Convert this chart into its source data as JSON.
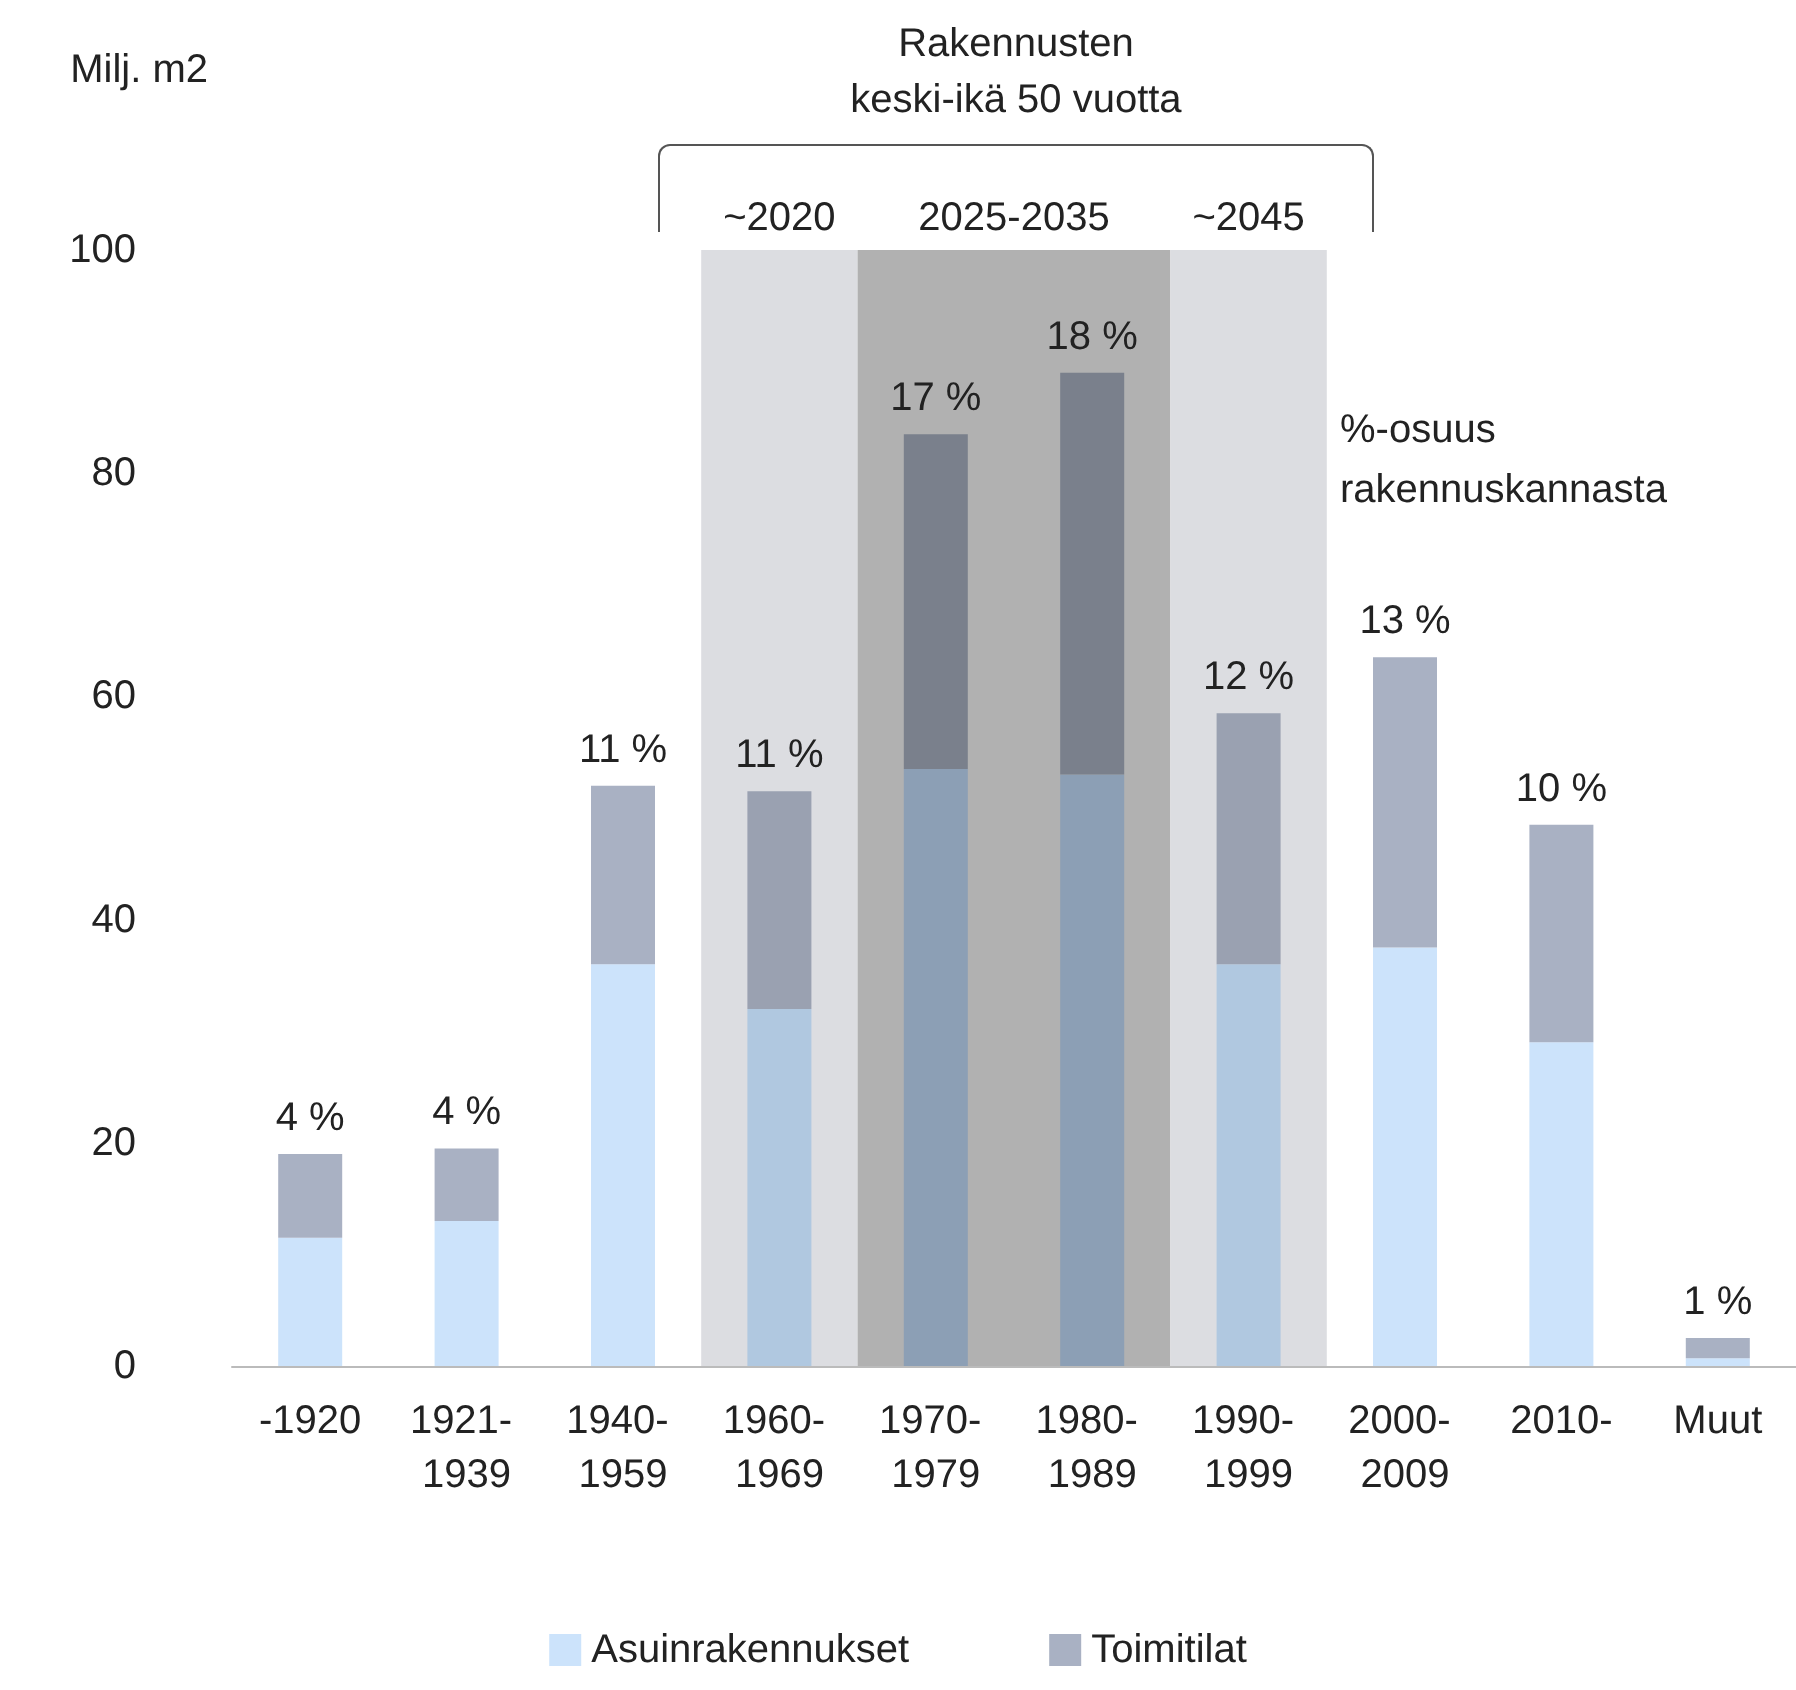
{
  "chart_data": {
    "type": "bar",
    "stacked": true,
    "title": "Rakennusten\nkeski-ikä 50 vuotta",
    "ylabel": "Milj. m2",
    "categories": [
      "-1920",
      "1921- 1939",
      "1940- 1959",
      "1960- 1969",
      "1970- 1979",
      "1980- 1989",
      "1990- 1999",
      "2000- 2009",
      "2010-",
      "Muut"
    ],
    "series": [
      {
        "name": "Asuinrakennukset",
        "color": "#cce3fb",
        "colors": [
          "#cce3fb",
          "#cce3fb",
          "#cce3fb",
          "#b0c8e0",
          "#8c9fb5",
          "#8c9fb5",
          "#b0c8e0",
          "#cce3fb",
          "#cce3fb",
          "#cce3fb"
        ],
        "values": [
          11.5,
          13,
          36,
          32,
          53.5,
          53,
          36,
          37.5,
          29,
          0.7
        ]
      },
      {
        "name": "Toimitilat",
        "color": "#a9b1c3",
        "colors": [
          "#a9b1c3",
          "#a9b1c3",
          "#a9b1c3",
          "#9aa1b1",
          "#7a808c",
          "#7a808c",
          "#9aa1b1",
          "#a9b1c3",
          "#a9b1c3",
          "#a9b1c3"
        ],
        "values": [
          7.5,
          6.5,
          16,
          19.5,
          30,
          36,
          22.5,
          26,
          19.5,
          1.8
        ]
      }
    ],
    "ylim": [
      0,
      100
    ],
    "yticks": [
      0,
      20,
      40,
      60,
      80,
      100
    ],
    "grid": false,
    "legend": "bottom",
    "bands": [
      {
        "axis": "x",
        "from": "1960- 1969",
        "to": "1960- 1969",
        "label": "~2020",
        "color": "#dcdde1"
      },
      {
        "axis": "x",
        "from": "1970- 1979",
        "to": "1980- 1989",
        "label": "2025-2035",
        "color": "#b1b1b1"
      },
      {
        "axis": "x",
        "from": "1990- 1999",
        "to": "1990- 1999",
        "label": "~2045",
        "color": "#dcdde1"
      }
    ],
    "annotations": [
      "%-osuus rakennuskannasta",
      {
        "text": "4 %",
        "x": "-1920",
        "y": 19
      },
      {
        "text": "4 %",
        "x": "1921- 1939",
        "y": 19.5
      },
      {
        "text": "11 %",
        "x": "1940- 1959",
        "y": 52
      },
      {
        "text": "11 %",
        "x": "1960- 1969",
        "y": 51.5
      },
      {
        "text": "17 %",
        "x": "1970- 1979",
        "y": 83.5
      },
      {
        "text": "18 %",
        "x": "1980- 1989",
        "y": 89
      },
      {
        "text": "12 %",
        "x": "1990- 1999",
        "y": 58.5
      },
      {
        "text": "13 %",
        "x": "2000- 2009",
        "y": 63.5
      },
      {
        "text": "10 %",
        "x": "2010-",
        "y": 48.5
      },
      {
        "text": "1 %",
        "x": "Muut",
        "y": 2.5
      }
    ]
  }
}
